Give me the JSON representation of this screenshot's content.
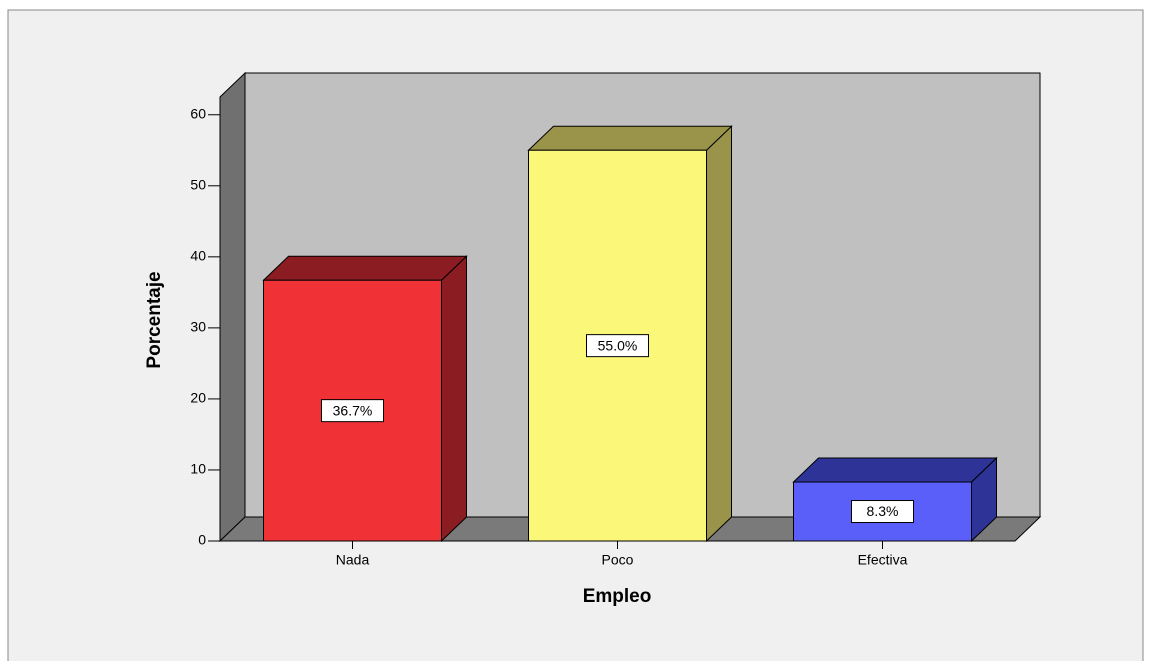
{
  "chart_data": {
    "type": "bar3d",
    "x_label": "Empleo",
    "y_label": "Porcentaje",
    "categories": [
      "Nada",
      "Poco",
      "Efectiva"
    ],
    "values": [
      36.7,
      55.0,
      8.3
    ],
    "value_labels": [
      "36.7%",
      "55.0%",
      "8.3%"
    ],
    "colors": [
      "#f03237",
      "#fbf778",
      "#5b5ffa"
    ],
    "side_colors": [
      "#8b1c22",
      "#9a944a",
      "#2e3397"
    ],
    "ylim": [
      0,
      62.5
    ],
    "yticks": [
      0,
      10,
      20,
      30,
      40,
      50,
      60
    ]
  }
}
